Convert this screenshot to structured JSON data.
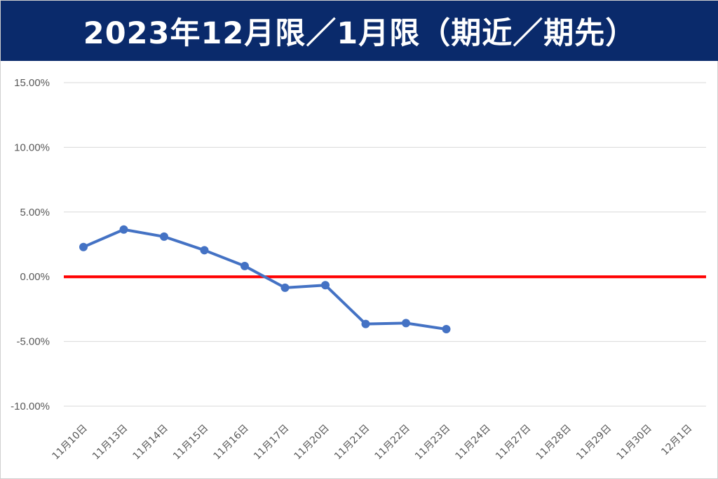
{
  "title": "2023年12月限／1月限（期近／期先）",
  "chart_data": {
    "type": "line",
    "title": "2023年12月限／1月限（期近／期先）",
    "xlabel": "",
    "ylabel": "",
    "categories": [
      "11月10日",
      "11月13日",
      "11月14日",
      "11月15日",
      "11月16日",
      "11月17日",
      "11月20日",
      "11月21日",
      "11月22日",
      "11月23日",
      "11月24日",
      "11月27日",
      "11月28日",
      "11月29日",
      "11月30日",
      "12月1日"
    ],
    "series": [
      {
        "values": [
          0.023,
          0.0365,
          0.031,
          0.0205,
          0.0083,
          -0.0085,
          -0.0065,
          -0.0365,
          -0.0358,
          -0.0405,
          null,
          null,
          null,
          null,
          null,
          null
        ]
      }
    ],
    "reference_line": {
      "y": 0.0
    },
    "ylim": [
      -0.1,
      0.15
    ],
    "yticks": [
      -0.1,
      -0.05,
      0.0,
      0.05,
      0.1,
      0.15
    ],
    "ytick_labels": [
      "-10.00%",
      "-5.00%",
      "0.00%",
      "5.00%",
      "10.00%",
      "15.00%"
    ],
    "grid": true,
    "colors": {
      "series": "#4472c4",
      "reference": "#ff0000",
      "grid": "#d9d9d9",
      "title_background": "#0a2a6b",
      "title_text": "#ffffff"
    }
  }
}
